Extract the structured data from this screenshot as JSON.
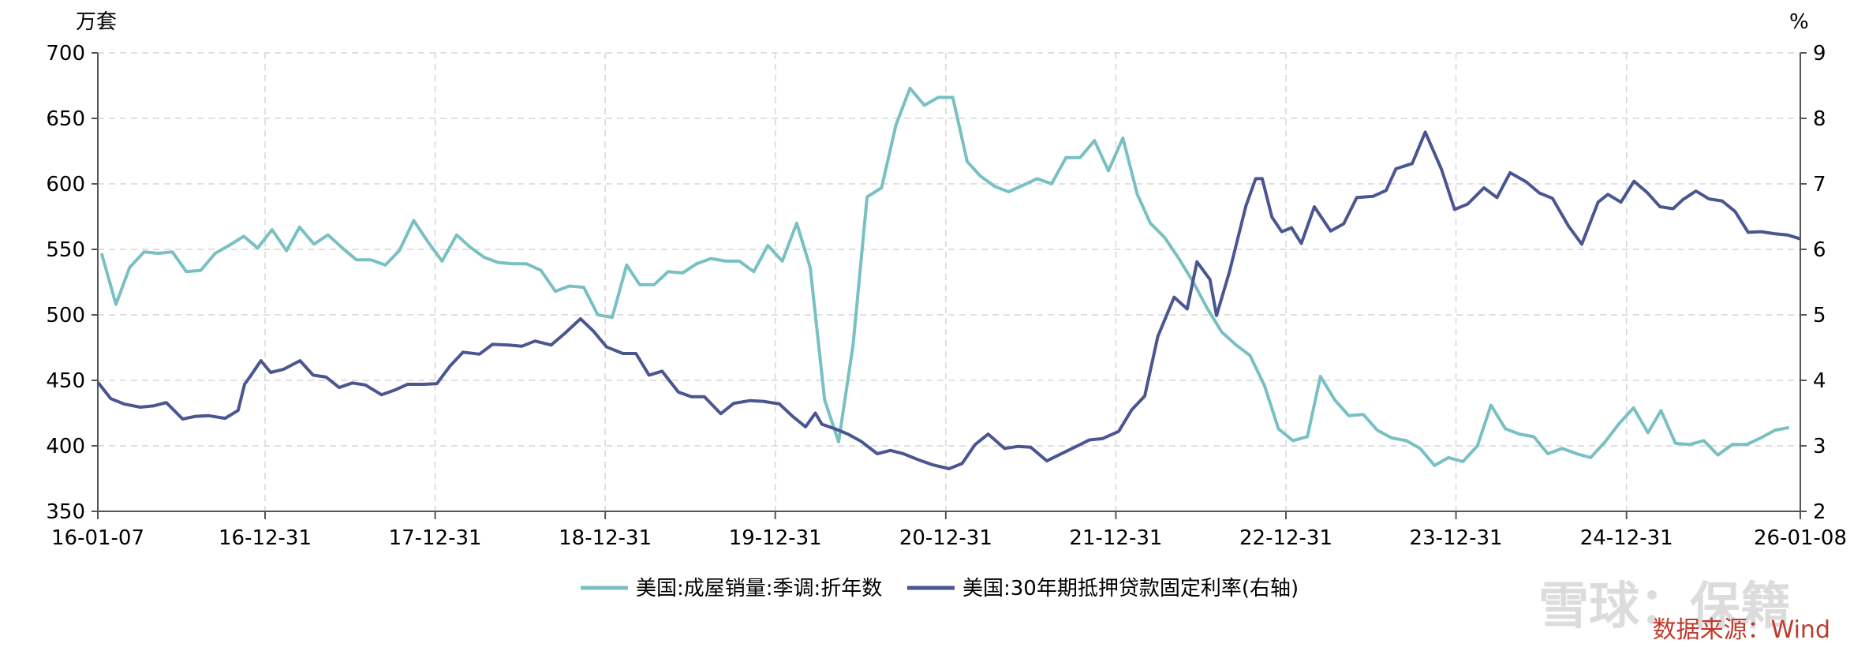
{
  "chart_data": {
    "type": "line",
    "left_axis_unit": "万套",
    "right_axis_unit": "%",
    "left_ylim": [
      350,
      700
    ],
    "left_ticks": [
      350,
      400,
      450,
      500,
      550,
      600,
      650,
      700
    ],
    "right_ylim": [
      2,
      9
    ],
    "right_ticks": [
      2,
      3,
      4,
      5,
      6,
      7,
      8,
      9
    ],
    "x_range": [
      "2016-01-07",
      "2026-01-08"
    ],
    "x_tick_labels": [
      {
        "date": "2016-01-07",
        "label": "16-01-07"
      },
      {
        "date": "2016-12-31",
        "label": "16-12-31"
      },
      {
        "date": "2017-12-31",
        "label": "17-12-31"
      },
      {
        "date": "2018-12-31",
        "label": "18-12-31"
      },
      {
        "date": "2019-12-31",
        "label": "19-12-31"
      },
      {
        "date": "2020-12-31",
        "label": "20-12-31"
      },
      {
        "date": "2021-12-31",
        "label": "21-12-31"
      },
      {
        "date": "2022-12-31",
        "label": "22-12-31"
      },
      {
        "date": "2023-12-31",
        "label": "23-12-31"
      },
      {
        "date": "2024-12-31",
        "label": "24-12-31"
      },
      {
        "date": "2026-01-08",
        "label": "26-01-08"
      }
    ],
    "grid": true,
    "legend_position": "bottom-center",
    "source_text": "数据来源：Wind",
    "watermark_text": "雪球：保籍",
    "colors": {
      "home_sales": "#79c0c2",
      "mortgage_rate": "#4a5690"
    },
    "series": [
      {
        "name": "美国:成屋销量:季调:折年数",
        "axis": "left",
        "color": "#79c0c2",
        "points": [
          [
            "2016-01",
            547
          ],
          [
            "2016-02",
            508
          ],
          [
            "2016-03",
            536
          ],
          [
            "2016-04",
            548
          ],
          [
            "2016-05",
            547
          ],
          [
            "2016-06",
            548
          ],
          [
            "2016-07",
            533
          ],
          [
            "2016-08",
            534
          ],
          [
            "2016-09",
            547
          ],
          [
            "2016-10",
            553
          ],
          [
            "2016-11",
            560
          ],
          [
            "2016-12",
            551
          ],
          [
            "2017-01",
            565
          ],
          [
            "2017-02",
            549
          ],
          [
            "2017-03",
            567
          ],
          [
            "2017-04",
            554
          ],
          [
            "2017-05",
            561
          ],
          [
            "2017-06",
            551
          ],
          [
            "2017-07",
            542
          ],
          [
            "2017-08",
            542
          ],
          [
            "2017-09",
            538
          ],
          [
            "2017-10",
            549
          ],
          [
            "2017-11",
            572
          ],
          [
            "2017-12",
            556
          ],
          [
            "2018-01",
            541
          ],
          [
            "2018-02",
            561
          ],
          [
            "2018-03",
            552
          ],
          [
            "2018-04",
            544
          ],
          [
            "2018-05",
            540
          ],
          [
            "2018-06",
            539
          ],
          [
            "2018-07",
            539
          ],
          [
            "2018-08",
            534
          ],
          [
            "2018-09",
            518
          ],
          [
            "2018-10",
            522
          ],
          [
            "2018-11",
            521
          ],
          [
            "2018-12",
            500
          ],
          [
            "2019-01",
            498
          ],
          [
            "2019-02",
            538
          ],
          [
            "2019-03",
            523
          ],
          [
            "2019-04",
            523
          ],
          [
            "2019-05",
            533
          ],
          [
            "2019-06",
            532
          ],
          [
            "2019-07",
            539
          ],
          [
            "2019-08",
            543
          ],
          [
            "2019-09",
            541
          ],
          [
            "2019-10",
            541
          ],
          [
            "2019-11",
            533
          ],
          [
            "2019-12",
            553
          ],
          [
            "2020-01",
            541
          ],
          [
            "2020-02",
            570
          ],
          [
            "2020-03",
            536
          ],
          [
            "2020-04",
            435
          ],
          [
            "2020-05",
            403
          ],
          [
            "2020-06",
            477
          ],
          [
            "2020-07",
            590
          ],
          [
            "2020-08",
            597
          ],
          [
            "2020-09",
            645
          ],
          [
            "2020-10",
            673
          ],
          [
            "2020-11",
            660
          ],
          [
            "2020-12",
            666
          ],
          [
            "2021-01",
            666
          ],
          [
            "2021-02",
            617
          ],
          [
            "2021-03",
            606
          ],
          [
            "2021-04",
            598
          ],
          [
            "2021-05",
            594
          ],
          [
            "2021-06",
            599
          ],
          [
            "2021-07",
            604
          ],
          [
            "2021-08",
            600
          ],
          [
            "2021-09",
            620
          ],
          [
            "2021-10",
            620
          ],
          [
            "2021-11",
            633
          ],
          [
            "2021-12",
            610
          ],
          [
            "2022-01",
            635
          ],
          [
            "2022-02",
            592
          ],
          [
            "2022-03",
            570
          ],
          [
            "2022-04",
            559
          ],
          [
            "2022-05",
            543
          ],
          [
            "2022-06",
            525
          ],
          [
            "2022-07",
            505
          ],
          [
            "2022-08",
            487
          ],
          [
            "2022-09",
            477
          ],
          [
            "2022-10",
            469
          ],
          [
            "2022-11",
            446
          ],
          [
            "2022-12",
            413
          ],
          [
            "2023-01",
            404
          ],
          [
            "2023-02",
            407
          ],
          [
            "2023-03",
            453
          ],
          [
            "2023-04",
            435
          ],
          [
            "2023-05",
            423
          ],
          [
            "2023-06",
            424
          ],
          [
            "2023-07",
            412
          ],
          [
            "2023-08",
            406
          ],
          [
            "2023-09",
            404
          ],
          [
            "2023-10",
            398
          ],
          [
            "2023-11",
            385
          ],
          [
            "2023-12",
            391
          ],
          [
            "2024-01",
            388
          ],
          [
            "2024-02",
            400
          ],
          [
            "2024-03",
            431
          ],
          [
            "2024-04",
            413
          ],
          [
            "2024-05",
            409
          ],
          [
            "2024-06",
            407
          ],
          [
            "2024-07",
            394
          ],
          [
            "2024-08",
            398
          ],
          [
            "2024-09",
            394
          ],
          [
            "2024-10",
            391
          ],
          [
            "2024-11",
            403
          ],
          [
            "2024-12",
            417
          ],
          [
            "2025-01",
            429
          ],
          [
            "2025-02",
            410
          ],
          [
            "2025-03",
            427
          ],
          [
            "2025-04",
            402
          ],
          [
            "2025-05",
            401
          ],
          [
            "2025-06",
            404
          ],
          [
            "2025-07",
            393
          ],
          [
            "2025-08",
            401
          ],
          [
            "2025-09",
            401
          ],
          [
            "2025-10",
            406
          ],
          [
            "2025-11",
            412
          ],
          [
            "2025-12",
            414
          ]
        ]
      },
      {
        "name": "美国:30年期抵押贷款固定利率(右轴)",
        "axis": "right",
        "color": "#4a5690",
        "points": [
          [
            "2016-01-07",
            3.97
          ],
          [
            "2016-02-04",
            3.72
          ],
          [
            "2016-03-03",
            3.64
          ],
          [
            "2016-04-07",
            3.59
          ],
          [
            "2016-05-05",
            3.61
          ],
          [
            "2016-06-02",
            3.66
          ],
          [
            "2016-07-07",
            3.41
          ],
          [
            "2016-08-04",
            3.45
          ],
          [
            "2016-09-01",
            3.46
          ],
          [
            "2016-10-06",
            3.42
          ],
          [
            "2016-11-03",
            3.54
          ],
          [
            "2016-11-17",
            3.94
          ],
          [
            "2016-12-01",
            4.08
          ],
          [
            "2016-12-22",
            4.3
          ],
          [
            "2017-01-12",
            4.12
          ],
          [
            "2017-02-09",
            4.17
          ],
          [
            "2017-03-16",
            4.3
          ],
          [
            "2017-04-13",
            4.08
          ],
          [
            "2017-05-11",
            4.05
          ],
          [
            "2017-06-08",
            3.89
          ],
          [
            "2017-07-06",
            3.96
          ],
          [
            "2017-08-03",
            3.93
          ],
          [
            "2017-09-07",
            3.78
          ],
          [
            "2017-10-05",
            3.85
          ],
          [
            "2017-11-02",
            3.94
          ],
          [
            "2017-12-07",
            3.94
          ],
          [
            "2018-01-04",
            3.95
          ],
          [
            "2018-02-01",
            4.22
          ],
          [
            "2018-03-01",
            4.43
          ],
          [
            "2018-04-05",
            4.4
          ],
          [
            "2018-05-03",
            4.55
          ],
          [
            "2018-06-07",
            4.54
          ],
          [
            "2018-07-05",
            4.52
          ],
          [
            "2018-08-02",
            4.6
          ],
          [
            "2018-09-06",
            4.54
          ],
          [
            "2018-10-04",
            4.71
          ],
          [
            "2018-11-08",
            4.94
          ],
          [
            "2018-12-06",
            4.75
          ],
          [
            "2019-01-03",
            4.51
          ],
          [
            "2019-02-07",
            4.41
          ],
          [
            "2019-03-07",
            4.41
          ],
          [
            "2019-04-04",
            4.08
          ],
          [
            "2019-05-02",
            4.14
          ],
          [
            "2019-06-06",
            3.82
          ],
          [
            "2019-07-04",
            3.75
          ],
          [
            "2019-08-01",
            3.75
          ],
          [
            "2019-09-05",
            3.49
          ],
          [
            "2019-10-03",
            3.65
          ],
          [
            "2019-11-07",
            3.69
          ],
          [
            "2019-12-05",
            3.68
          ],
          [
            "2020-01-09",
            3.64
          ],
          [
            "2020-02-06",
            3.45
          ],
          [
            "2020-03-05",
            3.29
          ],
          [
            "2020-03-26",
            3.5
          ],
          [
            "2020-04-09",
            3.33
          ],
          [
            "2020-05-07",
            3.26
          ],
          [
            "2020-06-04",
            3.18
          ],
          [
            "2020-07-02",
            3.07
          ],
          [
            "2020-08-06",
            2.88
          ],
          [
            "2020-09-03",
            2.93
          ],
          [
            "2020-10-01",
            2.88
          ],
          [
            "2020-11-05",
            2.78
          ],
          [
            "2020-12-03",
            2.71
          ],
          [
            "2021-01-07",
            2.65
          ],
          [
            "2021-02-04",
            2.73
          ],
          [
            "2021-03-04",
            3.02
          ],
          [
            "2021-04-01",
            3.18
          ],
          [
            "2021-05-06",
            2.96
          ],
          [
            "2021-06-03",
            2.99
          ],
          [
            "2021-07-01",
            2.98
          ],
          [
            "2021-08-05",
            2.77
          ],
          [
            "2021-09-02",
            2.87
          ],
          [
            "2021-10-07",
            2.99
          ],
          [
            "2021-11-04",
            3.09
          ],
          [
            "2021-12-02",
            3.11
          ],
          [
            "2022-01-06",
            3.22
          ],
          [
            "2022-02-03",
            3.55
          ],
          [
            "2022-03-03",
            3.76
          ],
          [
            "2022-03-31",
            4.67
          ],
          [
            "2022-05-05",
            5.27
          ],
          [
            "2022-06-02",
            5.09
          ],
          [
            "2022-06-23",
            5.81
          ],
          [
            "2022-07-21",
            5.54
          ],
          [
            "2022-08-04",
            4.99
          ],
          [
            "2022-09-01",
            5.66
          ],
          [
            "2022-10-06",
            6.66
          ],
          [
            "2022-10-27",
            7.08
          ],
          [
            "2022-11-10",
            7.08
          ],
          [
            "2022-12-01",
            6.49
          ],
          [
            "2022-12-22",
            6.27
          ],
          [
            "2023-01-12",
            6.33
          ],
          [
            "2023-02-02",
            6.09
          ],
          [
            "2023-03-02",
            6.65
          ],
          [
            "2023-04-06",
            6.28
          ],
          [
            "2023-05-04",
            6.39
          ],
          [
            "2023-06-01",
            6.79
          ],
          [
            "2023-07-06",
            6.81
          ],
          [
            "2023-08-03",
            6.9
          ],
          [
            "2023-08-24",
            7.23
          ],
          [
            "2023-09-28",
            7.31
          ],
          [
            "2023-10-26",
            7.79
          ],
          [
            "2023-11-30",
            7.22
          ],
          [
            "2023-12-28",
            6.61
          ],
          [
            "2024-01-25",
            6.69
          ],
          [
            "2024-02-29",
            6.94
          ],
          [
            "2024-03-28",
            6.79
          ],
          [
            "2024-04-25",
            7.17
          ],
          [
            "2024-05-30",
            7.03
          ],
          [
            "2024-06-27",
            6.86
          ],
          [
            "2024-07-25",
            6.78
          ],
          [
            "2024-08-29",
            6.35
          ],
          [
            "2024-09-26",
            6.08
          ],
          [
            "2024-10-31",
            6.72
          ],
          [
            "2024-11-21",
            6.84
          ],
          [
            "2024-12-19",
            6.72
          ],
          [
            "2025-01-16",
            7.04
          ],
          [
            "2025-02-13",
            6.87
          ],
          [
            "2025-03-13",
            6.65
          ],
          [
            "2025-04-10",
            6.62
          ],
          [
            "2025-05-01",
            6.76
          ],
          [
            "2025-05-29",
            6.89
          ],
          [
            "2025-06-26",
            6.77
          ],
          [
            "2025-07-24",
            6.74
          ],
          [
            "2025-08-21",
            6.58
          ],
          [
            "2025-09-18",
            6.26
          ],
          [
            "2025-10-16",
            6.27
          ],
          [
            "2025-11-13",
            6.24
          ],
          [
            "2025-12-11",
            6.22
          ],
          [
            "2026-01-08",
            6.16
          ]
        ]
      }
    ]
  }
}
